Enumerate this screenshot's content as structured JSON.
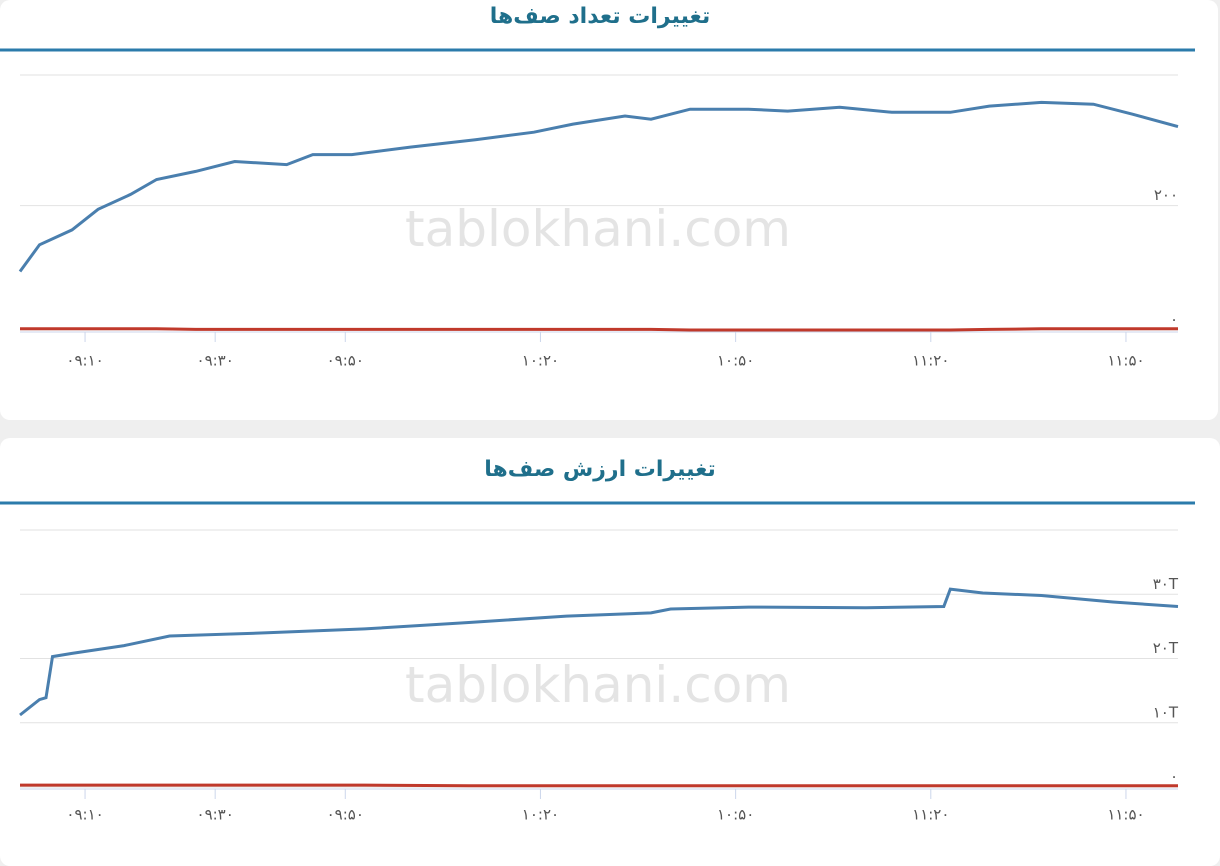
{
  "chart_data": [
    {
      "type": "line",
      "title": "تغییرات تعداد صف‌ها",
      "watermark": "tablokhani.com",
      "x": [
        540,
        543,
        548,
        552,
        557,
        561,
        567,
        573,
        581,
        585,
        591,
        600,
        610,
        619,
        625,
        633,
        637,
        643,
        652,
        658,
        666,
        674,
        683,
        689,
        697,
        705,
        711,
        718
      ],
      "series": [
        {
          "color": "#4a7fae",
          "values": [
            94,
            137,
            161,
            194,
            218,
            242,
            255,
            271,
            266,
            282,
            282,
            294,
            306,
            318,
            331,
            344,
            339,
            355,
            355,
            352,
            358,
            350,
            350,
            360,
            366,
            363,
            347,
            327
          ]
        },
        {
          "color": "#c0392b",
          "values": [
            2,
            2,
            2,
            2,
            2,
            2,
            1,
            1,
            1,
            1,
            1,
            1,
            1,
            1,
            1,
            1,
            1,
            0,
            0,
            0,
            0,
            0,
            0,
            1,
            2,
            2,
            2,
            2
          ]
        }
      ],
      "xlim": [
        540,
        718
      ],
      "xticks": [
        {
          "value": 550,
          "label": "۰۹:۱۰"
        },
        {
          "value": 570,
          "label": "۰۹:۳۰"
        },
        {
          "value": 590,
          "label": "۰۹:۵۰"
        },
        {
          "value": 620,
          "label": "۱۰:۲۰"
        },
        {
          "value": 650,
          "label": "۱۰:۵۰"
        },
        {
          "value": 680,
          "label": "۱۱:۲۰"
        },
        {
          "value": 710,
          "label": "۱۱:۵۰"
        }
      ],
      "ylim": [
        0,
        410
      ],
      "yticks": [
        {
          "value": 0,
          "label": "۰"
        },
        {
          "value": 200,
          "label": "۲۰۰"
        }
      ],
      "grid": true
    },
    {
      "type": "line",
      "title": "تغییرات ارزش صف‌ها",
      "watermark": "tablokhani.com",
      "x": [
        540,
        543,
        544,
        545,
        548,
        556,
        563,
        578,
        593,
        609,
        624,
        637,
        640,
        652,
        670,
        682,
        683,
        688,
        697,
        708,
        718
      ],
      "series": [
        {
          "color": "#4a7fae",
          "values": [
            11.2,
            13.6,
            13.9,
            20.3,
            20.8,
            22,
            23.5,
            24,
            24.6,
            25.6,
            26.6,
            27.1,
            27.7,
            28,
            27.9,
            28.1,
            30.8,
            30.2,
            29.8,
            28.8,
            28.1
          ]
        },
        {
          "color": "#c0392b",
          "values": [
            0.3,
            0.3,
            0.3,
            0.3,
            0.3,
            0.3,
            0.3,
            0.3,
            0.3,
            0.2,
            0.2,
            0.2,
            0.2,
            0.2,
            0.2,
            0.2,
            0.2,
            0.2,
            0.2,
            0.2,
            0.2
          ]
        }
      ],
      "xlim": [
        540,
        718
      ],
      "xticks": [
        {
          "value": 550,
          "label": "۰۹:۱۰"
        },
        {
          "value": 570,
          "label": "۰۹:۳۰"
        },
        {
          "value": 590,
          "label": "۰۹:۵۰"
        },
        {
          "value": 620,
          "label": "۱۰:۲۰"
        },
        {
          "value": 650,
          "label": "۱۰:۵۰"
        },
        {
          "value": 680,
          "label": "۱۱:۲۰"
        },
        {
          "value": 710,
          "label": "۱۱:۵۰"
        }
      ],
      "ylim": [
        0,
        40
      ],
      "yticks": [
        {
          "value": 0,
          "label": "۰"
        },
        {
          "value": 10,
          "label": "۱۰T"
        },
        {
          "value": 20,
          "label": "۲۰T"
        },
        {
          "value": 30,
          "label": "۳۰T"
        }
      ],
      "grid": true
    }
  ]
}
